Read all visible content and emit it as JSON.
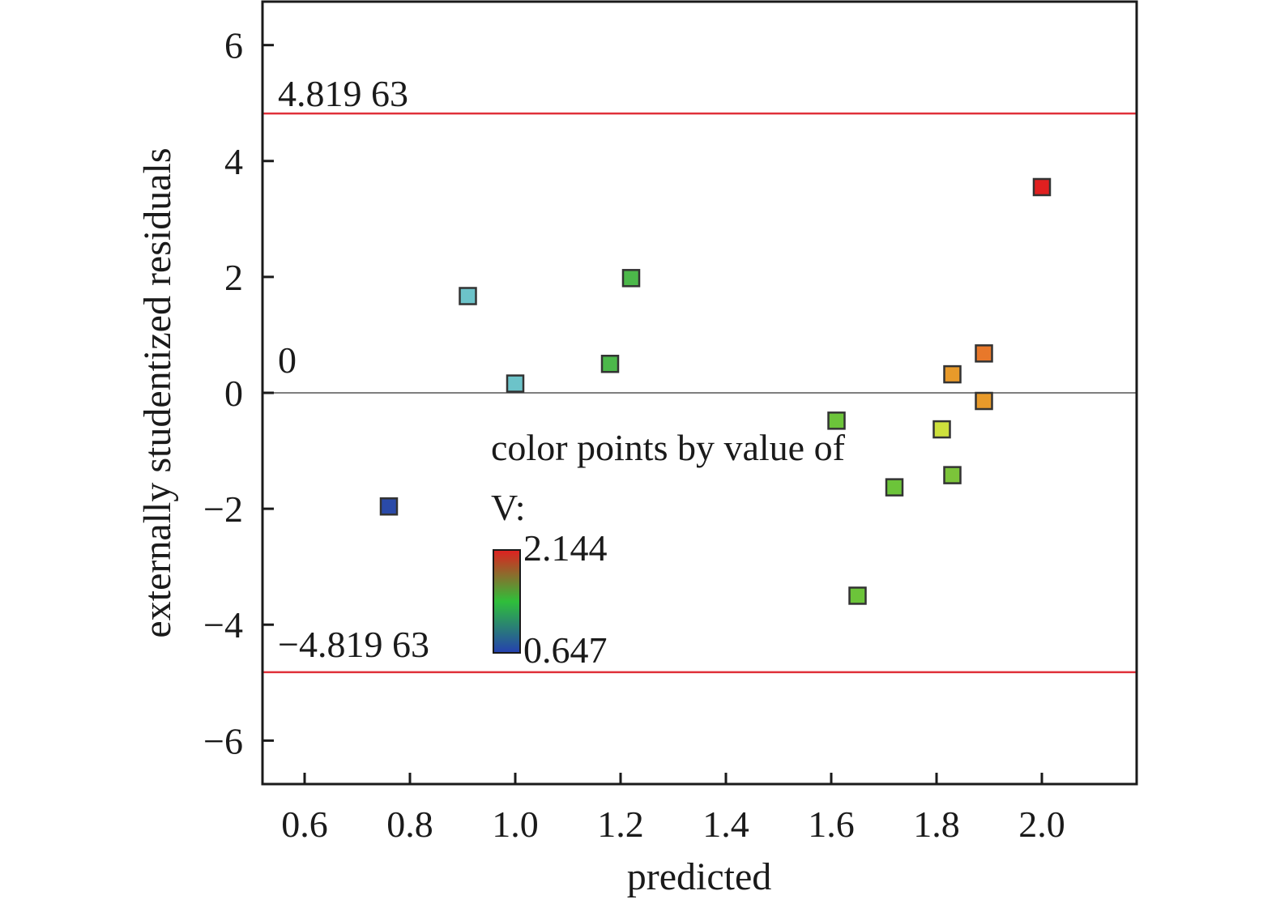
{
  "chart_data": {
    "type": "scatter",
    "xlabel": "predicted",
    "ylabel": "externally studentized residuals",
    "xlim": [
      0.52,
      2.18
    ],
    "ylim": [
      -6.75,
      6.75
    ],
    "x_ticks": [
      0.6,
      0.8,
      1.0,
      1.2,
      1.4,
      1.6,
      1.8,
      2.0
    ],
    "x_tick_labels": [
      "0.6",
      "0.8",
      "1.0",
      "1.2",
      "1.4",
      "1.6",
      "1.8",
      "2.0"
    ],
    "y_ticks": [
      6,
      4,
      2,
      0,
      -2,
      -4,
      -6
    ],
    "y_tick_labels": [
      "6",
      "4",
      "2",
      "0",
      "−2",
      "−4",
      "−6"
    ],
    "grid": false,
    "reference_lines": [
      {
        "y": 4.81963,
        "label": "4.819 63",
        "color": "#e0303a"
      },
      {
        "y": 0,
        "label": "0",
        "color": "#555555"
      },
      {
        "y": -4.81963,
        "label": "−4.819 63",
        "color": "#e0303a"
      }
    ],
    "colorbar": {
      "title": "color points by value of",
      "variable": "V:",
      "min": 0.647,
      "max": 2.144,
      "min_label": "0.647",
      "max_label": "2.144",
      "colors": [
        "#2540b0",
        "#2fbf3a",
        "#e02020"
      ]
    },
    "points": [
      {
        "x": 0.76,
        "y": -1.96,
        "color": "#2a4aa8"
      },
      {
        "x": 0.91,
        "y": 1.67,
        "color": "#6cc3c9"
      },
      {
        "x": 1.0,
        "y": 0.16,
        "color": "#6cc3c9"
      },
      {
        "x": 1.18,
        "y": 0.5,
        "color": "#4cb84a"
      },
      {
        "x": 1.22,
        "y": 1.98,
        "color": "#4cb84a"
      },
      {
        "x": 1.61,
        "y": -0.48,
        "color": "#6cc43a"
      },
      {
        "x": 1.65,
        "y": -3.5,
        "color": "#6cc43a"
      },
      {
        "x": 1.72,
        "y": -1.63,
        "color": "#6cc43a"
      },
      {
        "x": 1.81,
        "y": -0.63,
        "color": "#cde03c"
      },
      {
        "x": 1.83,
        "y": 0.32,
        "color": "#e89a2a"
      },
      {
        "x": 1.83,
        "y": -1.42,
        "color": "#7cc43a"
      },
      {
        "x": 1.89,
        "y": 0.68,
        "color": "#e8782a"
      },
      {
        "x": 1.89,
        "y": -0.14,
        "color": "#e89a2a"
      },
      {
        "x": 2.0,
        "y": 3.55,
        "color": "#e02020"
      }
    ]
  }
}
